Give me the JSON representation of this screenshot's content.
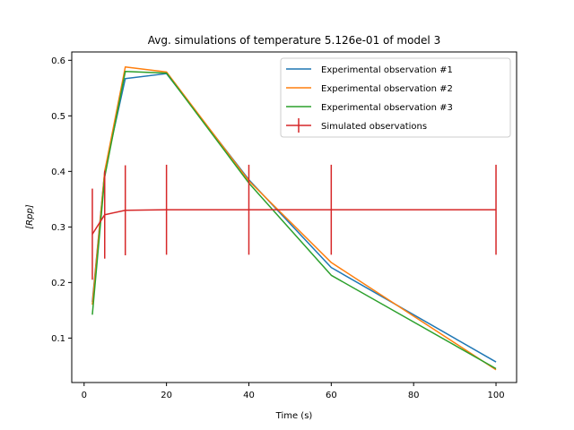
{
  "chart_data": {
    "type": "line",
    "title": "Avg. simulations of temperature 5.126e-01 of model 3",
    "xlabel": "Time (s)",
    "ylabel": "[Rpp]",
    "xlim": [
      -3,
      105
    ],
    "ylim": [
      0.02,
      0.615
    ],
    "x_ticks": [
      0,
      20,
      40,
      60,
      80,
      100
    ],
    "y_ticks": [
      0.1,
      0.2,
      0.3,
      0.4,
      0.5,
      0.6
    ],
    "x_tick_labels": [
      "0",
      "20",
      "40",
      "60",
      "80",
      "100"
    ],
    "y_tick_labels": [
      "0.1",
      "0.2",
      "0.3",
      "0.4",
      "0.5",
      "0.6"
    ],
    "grid": false,
    "legend_position": "top-right",
    "series": [
      {
        "name": "Experimental observation #1",
        "color": "#1f77b4",
        "x": [
          2,
          5,
          10,
          20,
          40,
          60,
          100
        ],
        "y": [
          0.165,
          0.4,
          0.567,
          0.576,
          0.385,
          0.227,
          0.057
        ]
      },
      {
        "name": "Experimental observation #2",
        "color": "#ff7f0e",
        "x": [
          2,
          5,
          10,
          20,
          40,
          60,
          100
        ],
        "y": [
          0.16,
          0.4,
          0.588,
          0.579,
          0.383,
          0.236,
          0.043
        ]
      },
      {
        "name": "Experimental observation #3",
        "color": "#2ca02c",
        "x": [
          2,
          5,
          10,
          20,
          40,
          60,
          100
        ],
        "y": [
          0.142,
          0.39,
          0.58,
          0.577,
          0.379,
          0.213,
          0.045
        ]
      },
      {
        "name": "Simulated observations",
        "color": "#d62728",
        "errorbars": true,
        "x": [
          2,
          5,
          10,
          20,
          40,
          60,
          100
        ],
        "y": [
          0.287,
          0.322,
          0.33,
          0.331,
          0.331,
          0.331,
          0.331
        ],
        "err": [
          0.082,
          0.079,
          0.081,
          0.081,
          0.081,
          0.081,
          0.081
        ]
      }
    ]
  }
}
